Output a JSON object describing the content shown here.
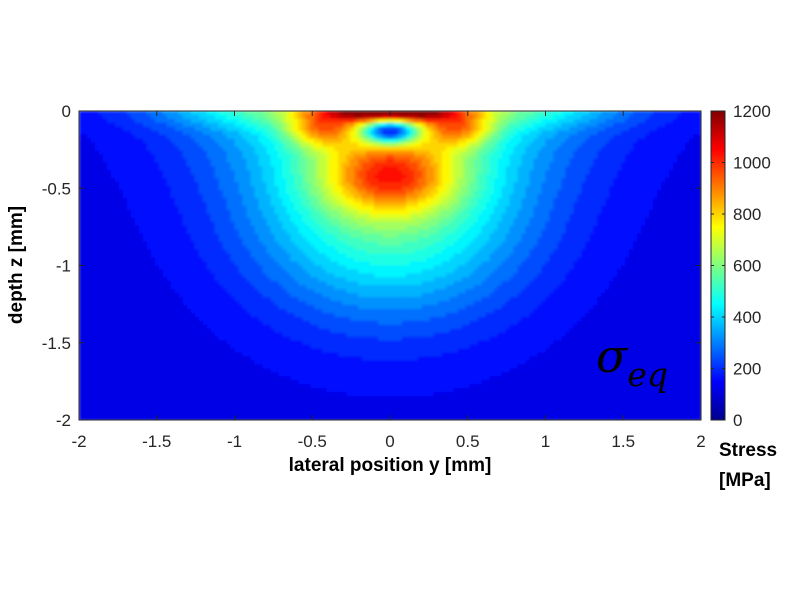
{
  "chart_data": {
    "type": "heatmap",
    "title": "",
    "xlabel": "lateral position y [mm]",
    "ylabel": "depth z [mm]",
    "xlim": [
      -2,
      2
    ],
    "ylim": [
      -2,
      0
    ],
    "xticks": [
      -2,
      -1.5,
      -1,
      -0.5,
      0,
      0.5,
      1,
      1.5,
      2
    ],
    "xtick_labels": [
      "-2",
      "-1.5",
      "-1",
      "-0.5",
      "0",
      "0.5",
      "1",
      "1.5",
      "2"
    ],
    "yticks": [
      0,
      -0.5,
      -1,
      -1.5,
      -2
    ],
    "ytick_labels": [
      "0",
      "-0.5",
      "-1",
      "-1.5",
      "-2"
    ],
    "annotation": {
      "symbol": "σ",
      "subscript": "eq"
    },
    "colorbar": {
      "colormap": "jet",
      "range": [
        0,
        1200
      ],
      "ticks": [
        0,
        200,
        400,
        600,
        800,
        1000,
        1200
      ],
      "tick_labels": [
        "0",
        "200",
        "400",
        "600",
        "800",
        "1000",
        "1200"
      ],
      "label_line1": "Stress",
      "label_line2": "[MPa]"
    },
    "field_features": [
      {
        "y": 0.0,
        "z": 0.0,
        "value": 1200
      },
      {
        "y": 0.0,
        "z": -0.13,
        "value": 350
      },
      {
        "y": 0.0,
        "z": -0.42,
        "value": 950
      },
      {
        "y": -0.45,
        "z": -0.12,
        "value": 850
      },
      {
        "y": 0.45,
        "z": -0.12,
        "value": 850
      },
      {
        "y": 0.0,
        "z": -1.0,
        "value": 500
      },
      {
        "y": -1.8,
        "z": -1.8,
        "value": 150
      },
      {
        "y": 1.8,
        "z": -1.8,
        "value": 150
      }
    ]
  }
}
